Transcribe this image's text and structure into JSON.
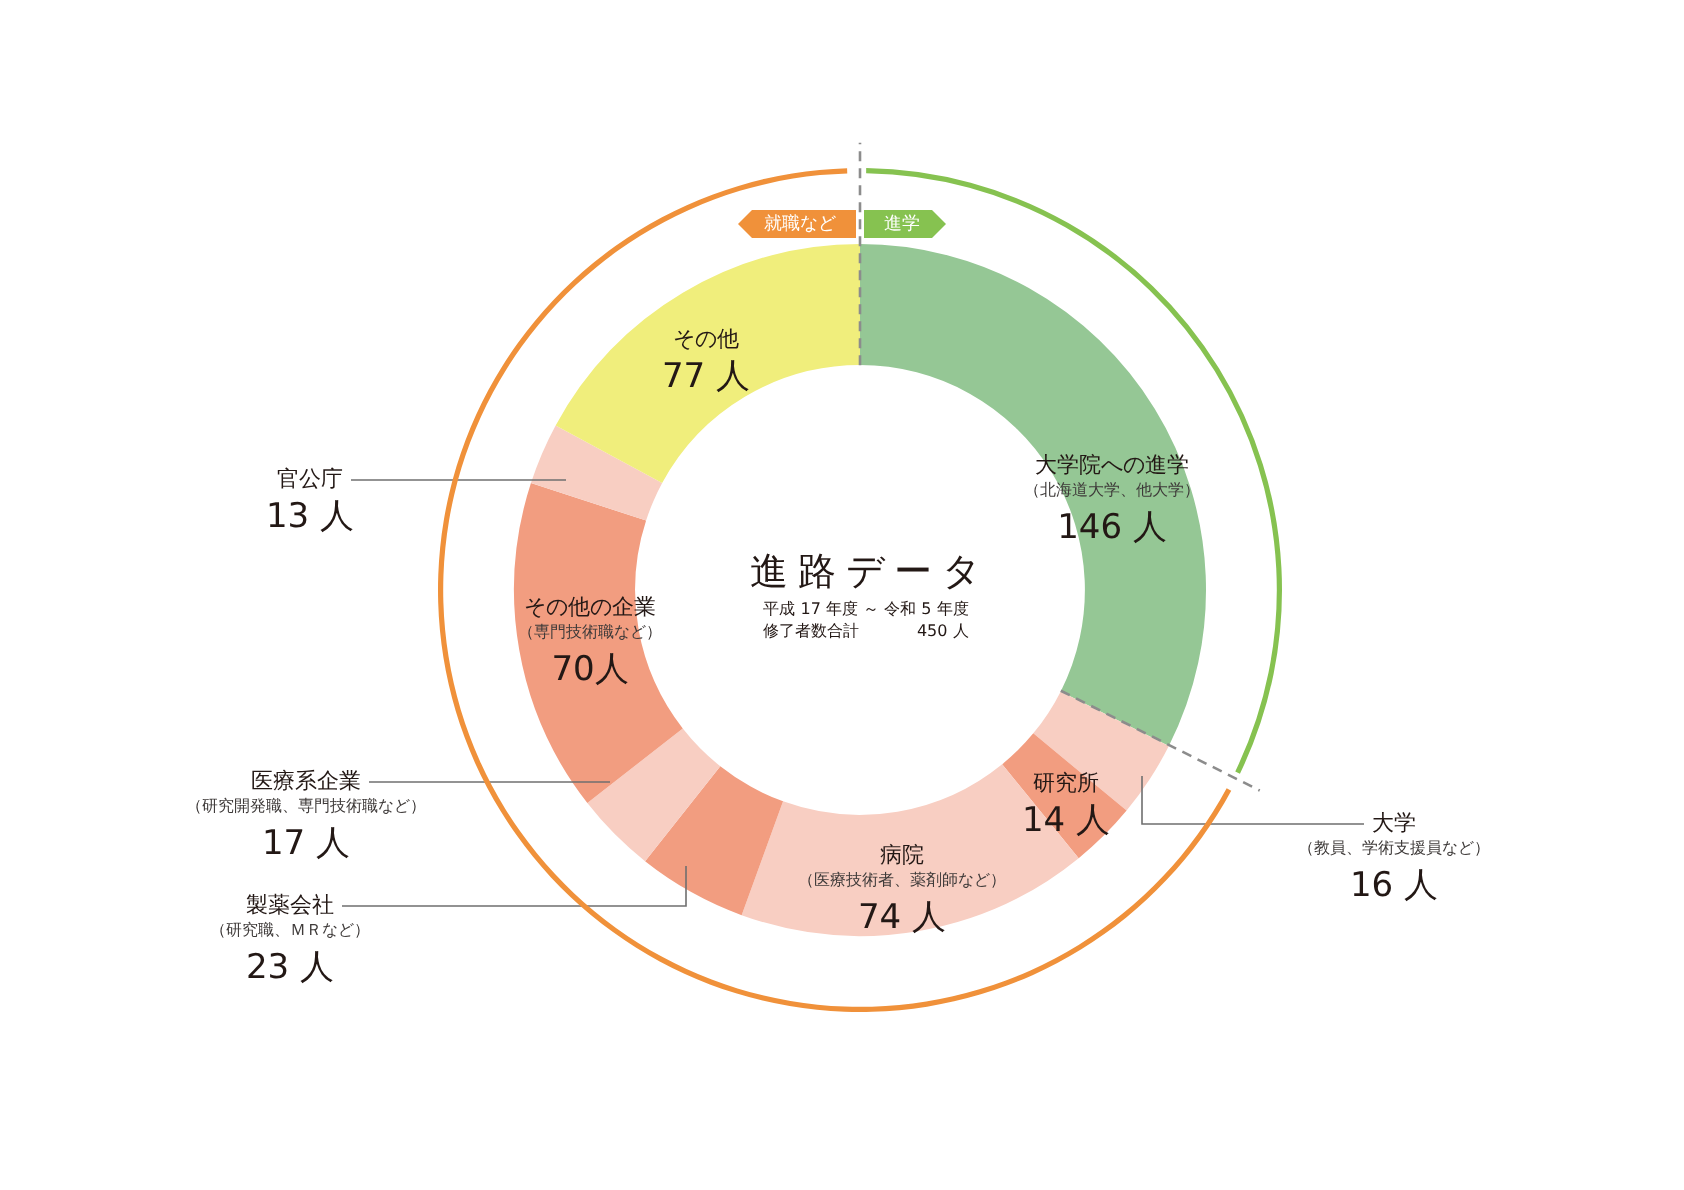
{
  "chart_data": [
    {
      "type": "donut",
      "title": "進路データ",
      "subtitle": "平成 17 年度 ～ 令和 5 年度",
      "categories": [
        "大学院への進学",
        "大学",
        "研究所",
        "病院",
        "製薬会社",
        "医療系企業",
        "その他の企業",
        "官公庁",
        "その他"
      ],
      "values": [
        146,
        16,
        14,
        74,
        23,
        17,
        70,
        13,
        77
      ],
      "colors": [
        "#95c795",
        "#f8cec2",
        "#f29d80",
        "#f8cec2",
        "#f29d80",
        "#f8cec2",
        "#f29d80",
        "#f8cec2",
        "#f0ee7c"
      ],
      "value_labels": [
        "146 人",
        "16 人",
        "14 人",
        "74 人",
        "23 人",
        "17 人",
        "70人",
        "13 人",
        "77 人"
      ],
      "annotations": [
        {
          "text": "（北海道大学、他大学）",
          "x": "大学院への進学"
        },
        {
          "text": "（教員、学術支援員など）",
          "x": "大学"
        },
        {
          "text": "（医療技術者、薬剤師など）",
          "x": "病院"
        },
        {
          "text": "（研究職、ＭＲなど）",
          "x": "製薬会社"
        },
        {
          "text": "（研究開発職、専門技術職など）",
          "x": "医療系企業"
        },
        {
          "text": "（専門技術職など）",
          "x": "その他の企業"
        },
        "修了者数合計",
        "450 人"
      ]
    },
    {
      "type": "donut",
      "categories": [
        "進学",
        "就職など"
      ],
      "values": [
        32.4,
        67.6
      ],
      "colors": [
        "#86c250",
        "#f0913a"
      ]
    }
  ]
}
